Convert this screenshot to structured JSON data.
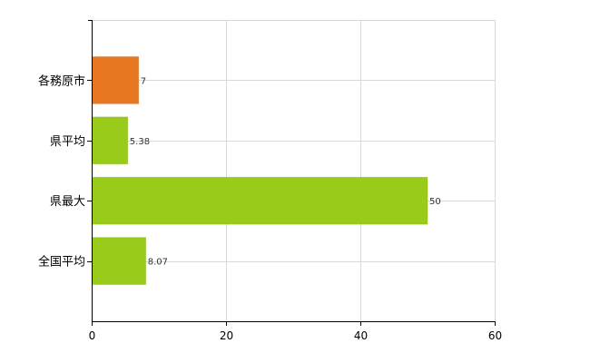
{
  "chart_data": {
    "type": "bar",
    "orientation": "horizontal",
    "categories": [
      "各務原市",
      "県平均",
      "県最大",
      "全国平均"
    ],
    "values": [
      7,
      5.38,
      50,
      8.07
    ],
    "value_labels": [
      "7",
      "5.38",
      "50",
      "8.07"
    ],
    "colors": [
      "#E87722",
      "#99CC1A",
      "#99CC1A",
      "#99CC1A"
    ],
    "xlim": [
      0,
      60
    ],
    "xticks": [
      0,
      20,
      40,
      60
    ],
    "grid": true,
    "title": "",
    "xlabel": "",
    "ylabel": ""
  }
}
